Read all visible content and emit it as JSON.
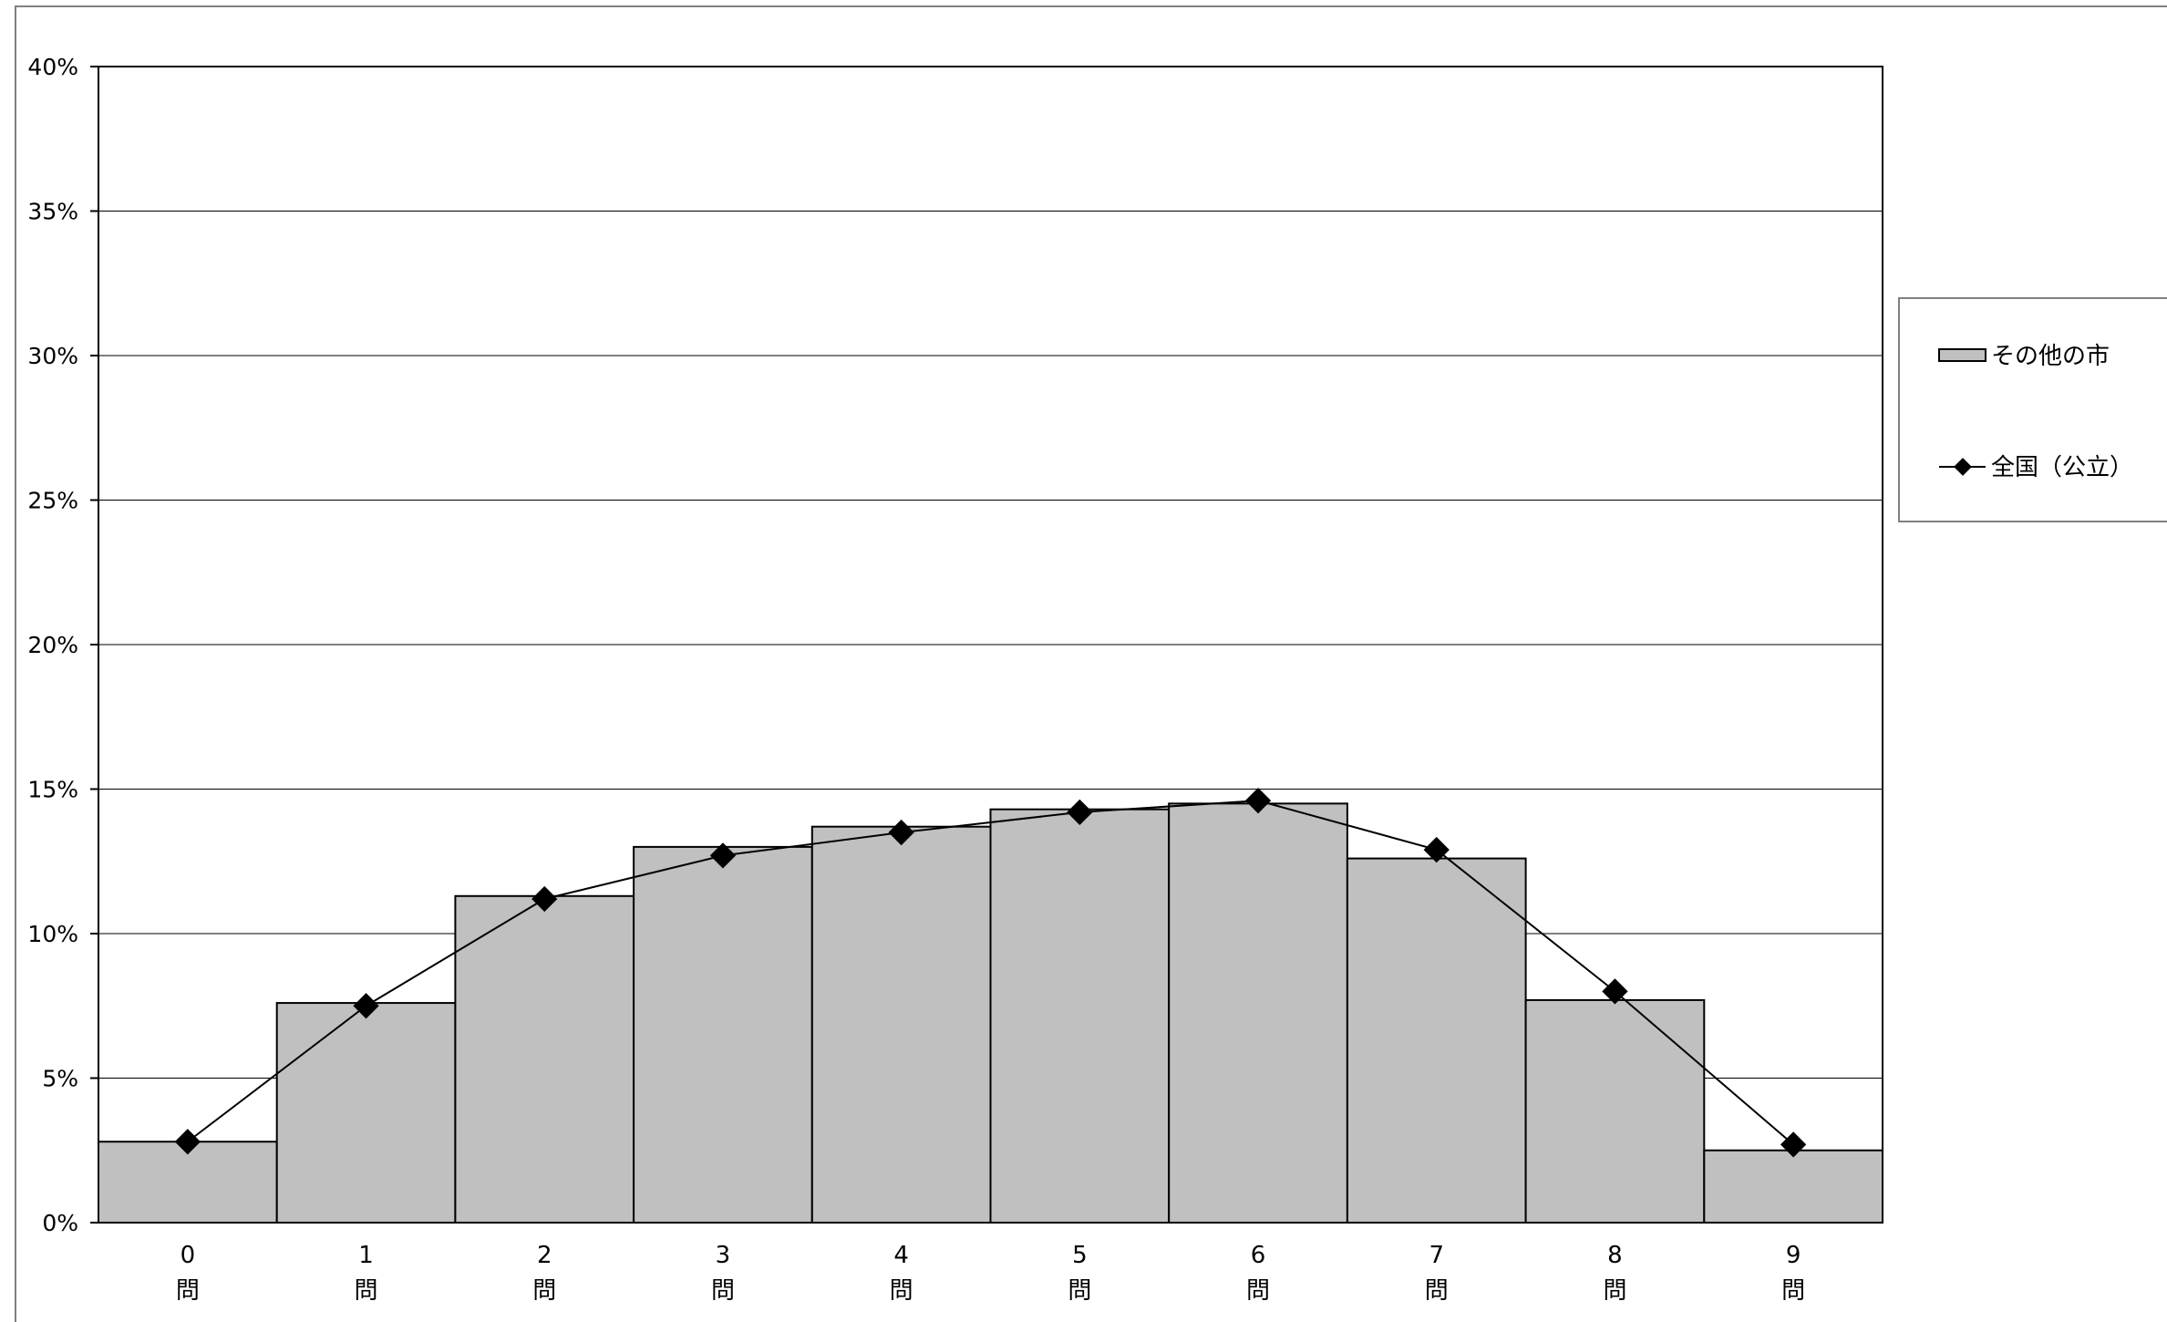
{
  "chart_data": {
    "type": "bar",
    "categories": [
      "0",
      "1",
      "2",
      "3",
      "4",
      "5",
      "6",
      "7",
      "8",
      "9"
    ],
    "category_suffix": "問",
    "series": [
      {
        "name": "その他の市",
        "type": "bar",
        "values": [
          2.8,
          7.6,
          11.3,
          13.0,
          13.7,
          14.3,
          14.5,
          12.6,
          7.7,
          2.5
        ],
        "color": "#c0c0c0"
      },
      {
        "name": "全国（公立）",
        "type": "line",
        "marker": "diamond",
        "values": [
          2.8,
          7.5,
          11.2,
          12.7,
          13.5,
          14.2,
          14.6,
          12.9,
          8.0,
          2.7
        ],
        "color": "#000000"
      }
    ],
    "ylim": [
      0,
      40
    ],
    "yticks": [
      "0%",
      "5%",
      "10%",
      "15%",
      "20%",
      "25%",
      "30%",
      "35%",
      "40%"
    ],
    "title": "",
    "xlabel": "",
    "ylabel": "",
    "grid": true,
    "legend_position": "right"
  }
}
